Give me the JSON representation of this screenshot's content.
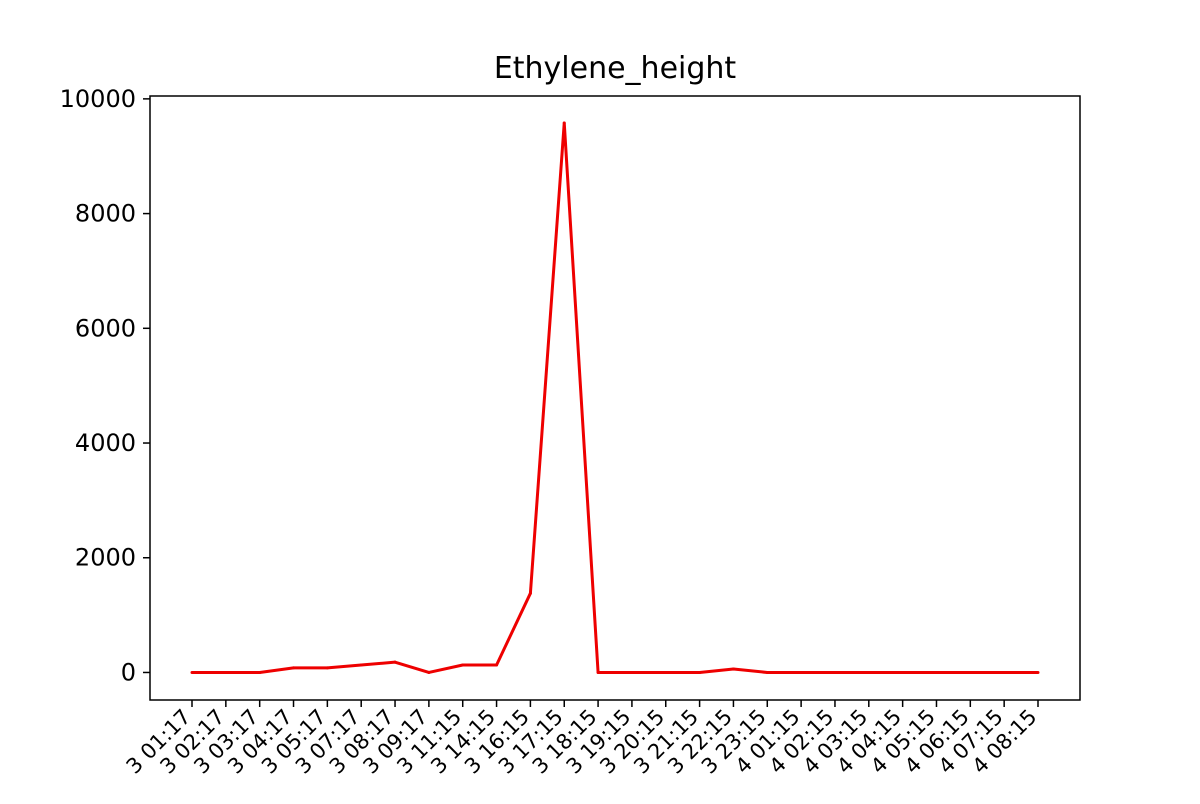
{
  "chart_data": {
    "type": "line",
    "title": "Ethylene_height",
    "xlabel": "",
    "ylabel": "",
    "ylim": [
      -480,
      10050
    ],
    "yticks": [
      0,
      2000,
      4000,
      6000,
      8000,
      10000
    ],
    "grid": false,
    "legend": "none",
    "line_color": "#ee0000",
    "x": [
      "3 01:17",
      "3 02:17",
      "3 03:17",
      "3 04:17",
      "3 05:17",
      "3 07:17",
      "3 08:17",
      "3 09:17",
      "3 11:15",
      "3 14:15",
      "3 16:15",
      "3 17:15",
      "3 18:15",
      "3 19:15",
      "3 20:15",
      "3 21:15",
      "3 22:15",
      "3 23:15",
      "4 01:15",
      "4 02:15",
      "4 03:15",
      "4 04:15",
      "4 05:15",
      "4 06:15",
      "4 07:15",
      "4 08:15"
    ],
    "series": [
      {
        "values": [
          0,
          0,
          0,
          80,
          80,
          130,
          180,
          0,
          130,
          130,
          1380,
          9580,
          0,
          0,
          0,
          0,
          60,
          0,
          0,
          0,
          0,
          0,
          0,
          0,
          0,
          0
        ]
      }
    ]
  }
}
